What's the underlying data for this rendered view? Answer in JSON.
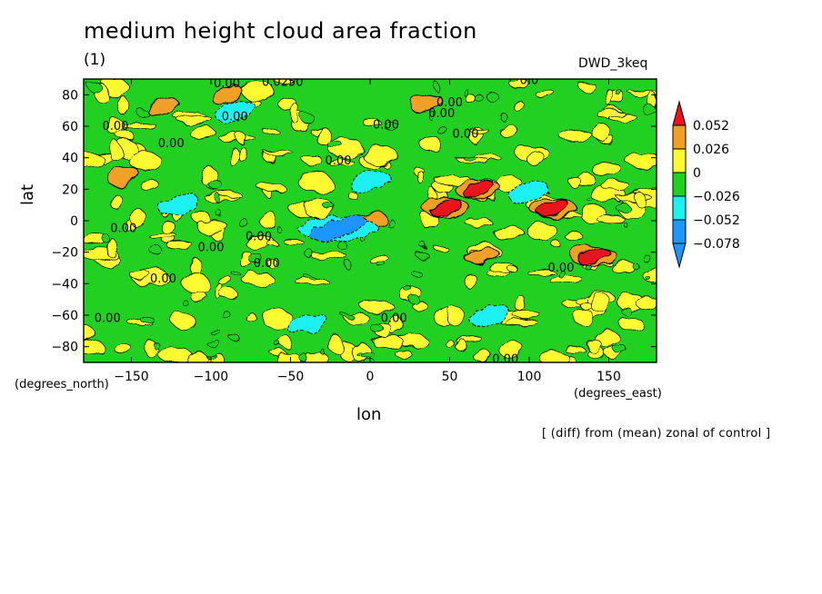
{
  "chart_data": {
    "type": "heatmap",
    "title": "medium height cloud area fraction",
    "subtitle": "(1)",
    "model_label": "DWD_3keq",
    "xlabel": "lon",
    "ylabel": "lat",
    "x_unit": "(degrees_east)",
    "y_unit": "(degrees_north)",
    "footnote": "[ (diff) from (mean) zonal of control ]",
    "xlim": [
      -180,
      180
    ],
    "ylim": [
      -90,
      90
    ],
    "x_ticks": [
      -150,
      -100,
      -50,
      0,
      50,
      100,
      150
    ],
    "y_ticks": [
      80,
      60,
      40,
      20,
      0,
      -20,
      -40,
      -60,
      -80
    ],
    "colorbar": {
      "levels": [
        "0.052",
        "0.026",
        "0",
        "−0.026",
        "−0.052",
        "−0.078"
      ],
      "colors": [
        "#e8141c",
        "#f0a028",
        "#fffa32",
        "#22d022",
        "#1ef0f0",
        "#1e96ff",
        "#1e3cff"
      ]
    },
    "contour_labels": [
      "0.00",
      "0.0250",
      "0.00",
      "0.00",
      "0.00",
      "0.00",
      "0.00",
      "0.00",
      "0.00",
      "0.00",
      "0.00",
      "0.00",
      "0.00",
      "0.00",
      "0.00",
      "0.00",
      "0.00",
      "0.00",
      "0.0",
      "0.00"
    ],
    "features": [
      {
        "kind": "max",
        "lon": 48,
        "lat": 8,
        "value_class": "> 0.052"
      },
      {
        "kind": "max",
        "lon": 68,
        "lat": 20,
        "value_class": "> 0.052"
      },
      {
        "kind": "max",
        "lon": 115,
        "lat": 8,
        "value_class": "> 0.052"
      },
      {
        "kind": "max",
        "lon": 140,
        "lat": -22,
        "value_class": "> 0.052"
      },
      {
        "kind": "max",
        "lon": -155,
        "lat": 28,
        "value_class": "0.026 to 0.052"
      },
      {
        "kind": "max",
        "lon": -130,
        "lat": 72,
        "value_class": "0.026 to 0.052"
      },
      {
        "kind": "max",
        "lon": -90,
        "lat": 80,
        "value_class": "0.026 to 0.052"
      },
      {
        "kind": "max",
        "lon": 35,
        "lat": 75,
        "value_class": "0.026 to 0.052"
      },
      {
        "kind": "max",
        "lon": 0,
        "lat": 0,
        "value_class": "0.026 to 0.052"
      },
      {
        "kind": "max",
        "lon": 70,
        "lat": -22,
        "value_class": "0.026 to 0.052"
      },
      {
        "kind": "min",
        "lon": -120,
        "lat": 10,
        "value_class": "-0.052 to -0.026"
      },
      {
        "kind": "min",
        "lon": -20,
        "lat": -5,
        "value_class": "-0.078 to -0.052"
      },
      {
        "kind": "min",
        "lon": 0,
        "lat": 25,
        "value_class": "-0.052 to -0.026"
      },
      {
        "kind": "min",
        "lon": 100,
        "lat": 18,
        "value_class": "-0.052 to -0.026"
      },
      {
        "kind": "min",
        "lon": -40,
        "lat": -65,
        "value_class": "-0.052 to -0.026"
      },
      {
        "kind": "min",
        "lon": 75,
        "lat": -60,
        "value_class": "-0.052 to -0.026"
      },
      {
        "kind": "min",
        "lon": -85,
        "lat": 70,
        "value_class": "-0.052 to -0.026"
      }
    ]
  }
}
